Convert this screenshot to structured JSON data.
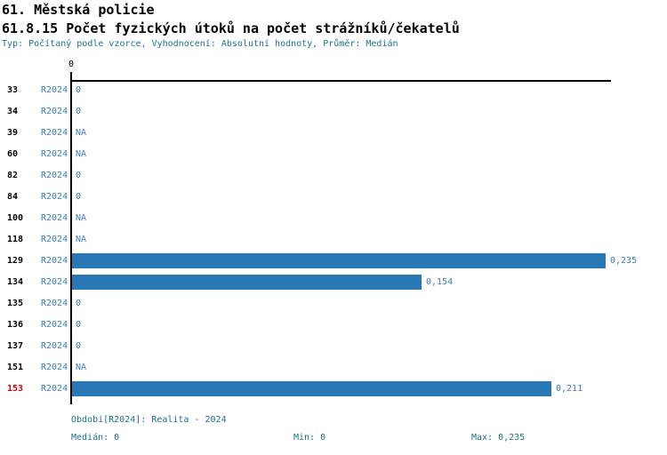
{
  "header": {
    "title": "61. Městská policie",
    "subtitle": "61.8.15 Počet fyzických útoků na počet strážníků/čekatelů",
    "meta": "Typ: Počítaný podle vzorce, Vyhodnocení: Absolutní hodnoty, Průměr: Medián"
  },
  "axis": {
    "tick_label": "0"
  },
  "chart_data": {
    "type": "bar",
    "orientation": "horizontal",
    "series_name": "R2024",
    "categories": [
      "33",
      "34",
      "39",
      "60",
      "82",
      "84",
      "100",
      "118",
      "129",
      "134",
      "135",
      "136",
      "137",
      "151",
      "153"
    ],
    "values": [
      0,
      0,
      null,
      null,
      0,
      0,
      null,
      null,
      0.235,
      0.154,
      0,
      0,
      0,
      null,
      0.211
    ],
    "value_labels": [
      "0",
      "0",
      "NA",
      "NA",
      "0",
      "0",
      "NA",
      "NA",
      "0,235",
      "0,154",
      "0",
      "0",
      "0",
      "NA",
      "0,211"
    ],
    "highlighted_category": "153",
    "title": "61.8.15 Počet fyzických útoků na počet strážníků/čekatelů",
    "xlabel": "",
    "ylabel": "",
    "xlim": [
      0,
      0.235
    ],
    "grid": false,
    "legend_position": "none"
  },
  "footer": {
    "period": "Období[R2024]: Realita - 2024",
    "median": "Medián: 0",
    "min": "Min: 0",
    "max": "Max: 0,235"
  },
  "colors": {
    "bar": "#2878B5",
    "blue_text": "#3C7EBC",
    "teal_text": "#1D7389",
    "highlight": "#CC0000",
    "axis": "#000000"
  }
}
